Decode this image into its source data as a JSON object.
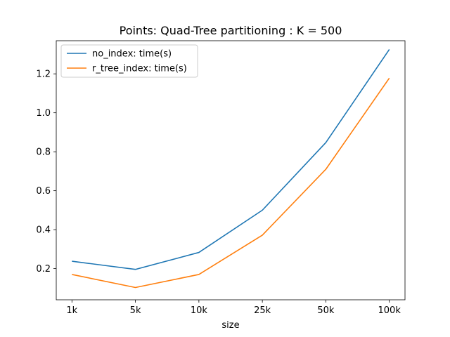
{
  "chart_data": {
    "type": "line",
    "title": "Points: Quad-Tree partitioning : K = 500",
    "xlabel": "size",
    "ylabel": "",
    "categories": [
      "1k",
      "5k",
      "10k",
      "25k",
      "50k",
      "100k"
    ],
    "ylim": [
      0.04,
      1.37
    ],
    "yticks": [
      "0.2",
      "0.4",
      "0.6",
      "0.8",
      "1.0",
      "1.2"
    ],
    "legend_position": "top-left",
    "grid": false,
    "series": [
      {
        "name": "no_index: time(s)",
        "color": "#1f77b4",
        "values": [
          0.238,
          0.196,
          0.283,
          0.5,
          0.847,
          1.325
        ]
      },
      {
        "name": "r_tree_index: time(s)",
        "color": "#ff7f0e",
        "values": [
          0.17,
          0.103,
          0.17,
          0.372,
          0.71,
          1.178
        ]
      }
    ]
  }
}
